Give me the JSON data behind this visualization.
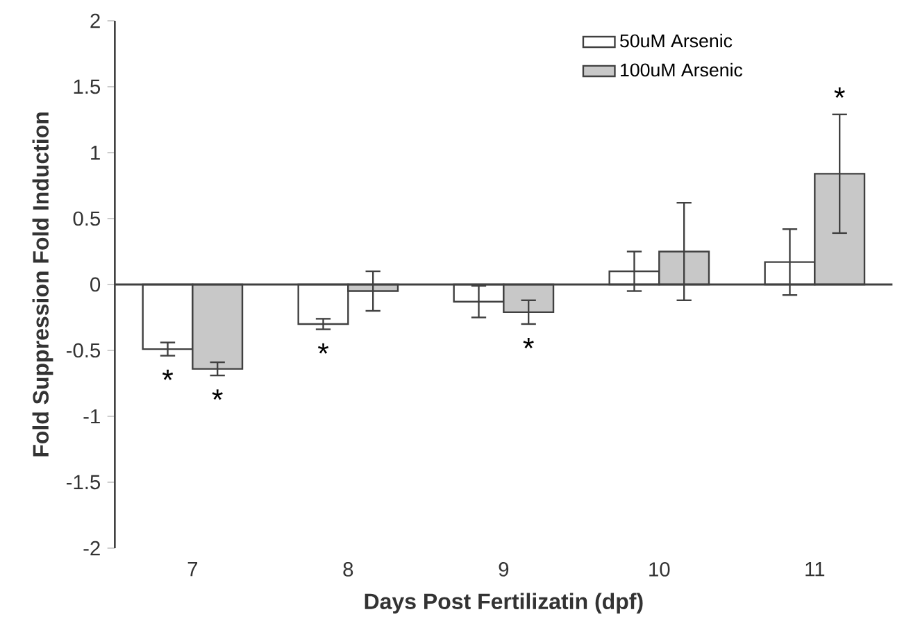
{
  "chart_data": {
    "type": "bar",
    "xlabel": "Days Post Fertilizatin (dpf)",
    "ylabel": "Fold Suppression   Fold Induction",
    "categories": [
      "7",
      "8",
      "9",
      "10",
      "11"
    ],
    "series": [
      {
        "name": "50uM Arsenic",
        "color": "#ffffff",
        "values": [
          -0.49,
          -0.3,
          -0.13,
          0.1,
          0.17
        ],
        "errors": [
          0.05,
          0.04,
          0.12,
          0.15,
          0.25
        ],
        "value_labels": [
          "*",
          "*",
          null,
          null,
          null
        ]
      },
      {
        "name": "100uM Arsenic",
        "color": "#c8c8c8",
        "values": [
          -0.64,
          -0.05,
          -0.21,
          0.25,
          0.84
        ],
        "errors": [
          0.05,
          0.15,
          0.09,
          0.37,
          0.45
        ],
        "value_labels": [
          "*",
          null,
          "*",
          null,
          "*"
        ]
      }
    ],
    "ylim": [
      -2,
      2
    ],
    "yticks": [
      -2,
      -1.5,
      -1,
      -0.5,
      0,
      0.5,
      1,
      1.5,
      2
    ],
    "ref_lines": [
      {
        "axis": "y",
        "value": 0
      }
    ],
    "grid": false,
    "legend": "top right"
  }
}
